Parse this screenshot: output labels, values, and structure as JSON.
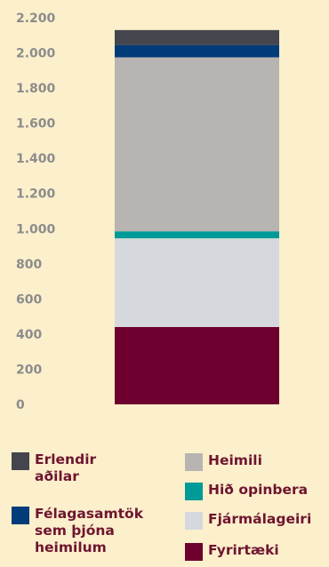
{
  "chart_data": {
    "type": "bar",
    "stacked": true,
    "categories": [
      ""
    ],
    "ylim": [
      0,
      2200
    ],
    "yticks": [
      0,
      200,
      400,
      600,
      800,
      1000,
      1200,
      1400,
      1600,
      1800,
      2000,
      2200
    ],
    "yticklabels": [
      "0",
      "200",
      "400",
      "600",
      "800",
      "1.000",
      "1.200",
      "1.400",
      "1.600",
      "1.800",
      "2.000",
      "2.200"
    ],
    "grid": false,
    "legend_position": "bottom",
    "series": [
      {
        "name": "Fyrirtæki",
        "values": [
          440
        ],
        "color": "#6E0030"
      },
      {
        "name": "Fjármálageiri",
        "values": [
          505
        ],
        "color": "#D5D9DD"
      },
      {
        "name": "Hið opinbera",
        "values": [
          40
        ],
        "color": "#009A98"
      },
      {
        "name": "Heimili",
        "values": [
          990
        ],
        "color": "#B8B4B1"
      },
      {
        "name": "Félagasamtök sem þjóna heimilum",
        "values": [
          70
        ],
        "color": "#003B7A"
      },
      {
        "name": "Erlendir aðilar",
        "values": [
          85
        ],
        "color": "#45464D"
      }
    ]
  },
  "legend": {
    "left": [
      {
        "label": "Erlendir\naðilar",
        "color": "#45464D"
      },
      {
        "label": "Félagasamtök\nsem þjóna\nheimilum",
        "color": "#003B7A"
      }
    ],
    "right": [
      {
        "label": "Heimili",
        "color": "#B8B4B1"
      },
      {
        "label": "Hið opinbera",
        "color": "#009A98"
      },
      {
        "label": "Fjármálageiri",
        "color": "#D5D9DD"
      },
      {
        "label": "Fyrirtæki",
        "color": "#6E0030"
      }
    ]
  }
}
